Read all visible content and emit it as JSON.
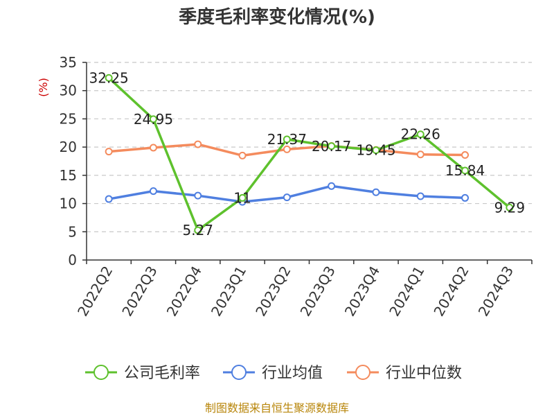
{
  "chart_data": {
    "type": "line",
    "title": "季度毛利率变化情况(%)",
    "ylabel": "(%)",
    "xlabel": "",
    "ylim": [
      0,
      35
    ],
    "yticks": [
      0,
      5,
      10,
      15,
      20,
      25,
      30,
      35
    ],
    "grid": true,
    "legend_position": "bottom",
    "categories": [
      "2022Q2",
      "2022Q3",
      "2022Q4",
      "2023Q1",
      "2023Q2",
      "2023Q3",
      "2023Q4",
      "2024Q1",
      "2024Q2",
      "2024Q3"
    ],
    "series": [
      {
        "name": "公司毛利率",
        "color": "#5ec12d",
        "values": [
          32.25,
          24.95,
          5.27,
          11,
          21.37,
          20.17,
          19.45,
          22.26,
          15.84,
          9.29
        ],
        "labels": [
          "32.25",
          "24.95",
          "5.27",
          "11",
          "21.37",
          "20.17",
          "19.45",
          "22.26",
          "15.84",
          "9.29"
        ]
      },
      {
        "name": "行业均值",
        "color": "#4f7fe0",
        "values": [
          10.8,
          12.2,
          11.4,
          10.3,
          11.1,
          13.1,
          12.0,
          11.3,
          11.0,
          null
        ]
      },
      {
        "name": "行业中位数",
        "color": "#f48b5d",
        "values": [
          19.2,
          19.9,
          20.5,
          18.5,
          19.6,
          20.2,
          19.5,
          18.7,
          18.6,
          null
        ]
      }
    ]
  },
  "source_note": "制图数据来自恒生聚源数据库"
}
